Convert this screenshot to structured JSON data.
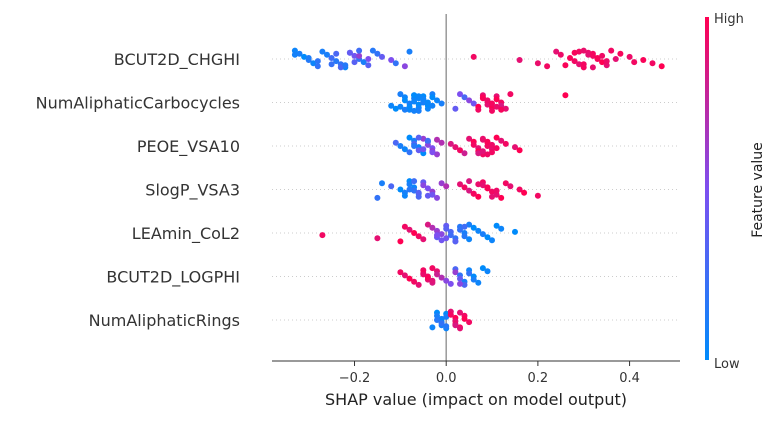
{
  "chart_data": {
    "type": "scatter",
    "subtype": "shap-beeswarm",
    "xlabel": "SHAP value (impact on model output)",
    "xlim": [
      -0.38,
      0.51
    ],
    "xticks": [
      -0.2,
      0.0,
      0.2,
      0.4
    ],
    "xtick_labels": [
      "−0.2",
      "0.0",
      "0.2",
      "0.4"
    ],
    "zero_line": 0.0,
    "features": [
      "BCUT2D_CHGHI",
      "NumAliphaticCarbocycles",
      "PEOE_VSA10",
      "SlogP_VSA3",
      "LEAmin_CoL2",
      "BCUT2D_LOGPHI",
      "NumAliphaticRings"
    ],
    "series": [
      {
        "feature": "BCUT2D_CHGHI",
        "x": [
          -0.33,
          -0.32,
          -0.31,
          -0.3,
          -0.29,
          -0.28,
          -0.27,
          -0.26,
          -0.25,
          -0.24,
          -0.23,
          -0.22,
          -0.21,
          -0.2,
          -0.19,
          -0.18,
          -0.17,
          -0.16,
          -0.15,
          -0.14,
          -0.12,
          -0.11,
          -0.09,
          -0.08,
          -0.33,
          -0.3,
          -0.28,
          -0.25,
          -0.23,
          -0.21,
          -0.19,
          -0.17,
          -0.2,
          -0.22,
          -0.19,
          -0.24,
          0.06,
          0.16,
          0.2,
          0.22,
          0.24,
          0.25,
          0.27,
          0.28,
          0.29,
          0.3,
          0.31,
          0.32,
          0.33,
          0.34,
          0.35,
          0.36,
          0.38,
          0.4,
          0.43,
          0.45,
          0.47,
          0.29,
          0.31,
          0.33,
          0.35,
          0.3,
          0.32,
          0.28,
          0.34,
          0.37,
          0.41,
          0.26,
          0.3,
          0.32
        ],
        "v": [
          0.05,
          0.1,
          0.0,
          0.15,
          0.05,
          0.2,
          0.1,
          0.1,
          0.25,
          0.15,
          0.2,
          0.05,
          0.3,
          0.45,
          0.2,
          0.1,
          0.35,
          0.15,
          0.2,
          0.4,
          0.5,
          0.2,
          0.55,
          0.1,
          0.08,
          0.12,
          0.18,
          0.22,
          0.3,
          0.4,
          0.6,
          0.5,
          0.35,
          0.15,
          0.25,
          0.3,
          0.95,
          0.9,
          0.92,
          0.95,
          0.9,
          0.93,
          0.98,
          0.95,
          0.9,
          0.96,
          0.92,
          0.94,
          0.95,
          1.0,
          0.9,
          0.95,
          0.97,
          0.93,
          0.98,
          0.95,
          1.0,
          0.95,
          0.9,
          0.98,
          0.93,
          0.96,
          0.91,
          0.97,
          0.94,
          0.9,
          0.95,
          0.98,
          0.92,
          0.96
        ]
      },
      {
        "feature": "NumAliphaticCarbocycles",
        "x": [
          -0.12,
          -0.11,
          -0.1,
          -0.09,
          -0.09,
          -0.08,
          -0.08,
          -0.08,
          -0.07,
          -0.07,
          -0.07,
          -0.06,
          -0.06,
          -0.06,
          -0.05,
          -0.05,
          -0.05,
          -0.04,
          -0.04,
          -0.03,
          -0.03,
          -0.02,
          -0.01,
          -0.1,
          -0.09,
          -0.07,
          -0.06,
          -0.05,
          -0.04,
          -0.08,
          -0.07,
          -0.06,
          -0.05,
          -0.04,
          -0.03,
          0.02,
          0.03,
          0.04,
          0.05,
          0.06,
          0.07,
          0.07,
          0.08,
          0.08,
          0.09,
          0.09,
          0.1,
          0.1,
          0.11,
          0.11,
          0.12,
          0.12,
          0.13,
          0.14,
          0.08,
          0.09,
          0.1,
          0.11,
          0.12,
          0.26
        ],
        "v": [
          0.05,
          0.0,
          0.1,
          0.05,
          0.0,
          0.1,
          0.0,
          0.05,
          0.0,
          0.1,
          0.05,
          0.0,
          0.05,
          0.1,
          0.0,
          0.05,
          0.1,
          0.0,
          0.05,
          0.1,
          0.0,
          0.05,
          0.1,
          0.05,
          0.1,
          0.0,
          0.05,
          0.1,
          0.0,
          0.02,
          0.08,
          0.04,
          0.06,
          0.03,
          0.07,
          0.4,
          0.5,
          0.3,
          0.55,
          0.45,
          1.0,
          0.95,
          0.9,
          1.0,
          0.95,
          0.9,
          1.0,
          0.95,
          0.9,
          1.0,
          0.95,
          0.85,
          0.9,
          0.95,
          0.98,
          0.93,
          0.96,
          0.92,
          0.97,
          1.0
        ]
      },
      {
        "feature": "PEOE_VSA10",
        "x": [
          -0.11,
          -0.1,
          -0.09,
          -0.08,
          -0.08,
          -0.07,
          -0.07,
          -0.06,
          -0.06,
          -0.05,
          -0.05,
          -0.04,
          -0.04,
          -0.03,
          -0.03,
          -0.02,
          -0.02,
          -0.01,
          -0.07,
          -0.05,
          -0.03,
          -0.06,
          -0.04,
          0.01,
          0.02,
          0.03,
          0.04,
          0.05,
          0.06,
          0.06,
          0.07,
          0.07,
          0.08,
          0.08,
          0.09,
          0.09,
          0.1,
          0.1,
          0.11,
          0.12,
          0.13,
          0.15,
          0.16,
          0.07,
          0.08,
          0.09,
          0.1,
          0.11,
          0.08,
          0.09
        ],
        "v": [
          0.3,
          0.1,
          0.05,
          0.2,
          0.0,
          0.1,
          0.3,
          0.05,
          0.4,
          0.0,
          0.6,
          0.1,
          0.55,
          0.5,
          0.65,
          0.6,
          0.7,
          0.7,
          0.15,
          0.45,
          0.5,
          0.35,
          0.25,
          0.85,
          0.9,
          0.95,
          0.8,
          0.9,
          1.0,
          0.95,
          0.9,
          1.0,
          0.95,
          0.9,
          1.0,
          0.95,
          0.9,
          0.95,
          1.0,
          0.9,
          0.95,
          0.9,
          1.0,
          0.85,
          0.92,
          0.98,
          0.93,
          0.96,
          0.88,
          0.94
        ]
      },
      {
        "feature": "SlogP_VSA3",
        "x": [
          -0.15,
          -0.14,
          -0.12,
          -0.1,
          -0.09,
          -0.09,
          -0.08,
          -0.08,
          -0.07,
          -0.07,
          -0.06,
          -0.06,
          -0.05,
          -0.05,
          -0.04,
          -0.03,
          -0.03,
          -0.02,
          -0.01,
          0.0,
          -0.08,
          -0.06,
          -0.04,
          -0.07,
          0.03,
          0.04,
          0.05,
          0.06,
          0.07,
          0.08,
          0.08,
          0.09,
          0.1,
          0.11,
          0.12,
          0.13,
          0.14,
          0.16,
          0.17,
          0.2,
          0.05,
          0.07,
          0.09,
          0.11,
          0.06,
          0.1
        ],
        "v": [
          0.2,
          0.1,
          0.3,
          0.0,
          0.1,
          0.05,
          0.0,
          0.1,
          0.05,
          0.2,
          0.1,
          0.3,
          0.4,
          0.55,
          0.5,
          0.6,
          0.45,
          0.55,
          0.6,
          0.7,
          0.15,
          0.35,
          0.4,
          0.25,
          0.9,
          0.95,
          0.85,
          0.9,
          1.0,
          0.95,
          0.9,
          1.0,
          0.95,
          0.9,
          1.0,
          0.95,
          0.9,
          0.95,
          1.0,
          0.95,
          0.85,
          0.92,
          0.98,
          0.93,
          0.96,
          0.9
        ]
      },
      {
        "feature": "LEAmin_CoL2",
        "x": [
          -0.27,
          -0.15,
          -0.1,
          -0.09,
          -0.08,
          -0.07,
          -0.06,
          -0.05,
          -0.04,
          -0.03,
          -0.02,
          -0.01,
          -0.02,
          -0.01,
          0.0,
          0.0,
          0.01,
          0.01,
          0.02,
          0.02,
          0.03,
          0.03,
          0.04,
          0.04,
          0.05,
          0.05,
          0.06,
          0.07,
          0.08,
          0.09,
          0.1,
          0.11,
          0.12,
          0.15,
          -0.02,
          0.0,
          0.02,
          0.04
        ],
        "v": [
          0.95,
          0.9,
          1.0,
          0.95,
          0.9,
          1.0,
          0.95,
          0.9,
          0.85,
          0.7,
          0.6,
          0.55,
          0.4,
          0.45,
          0.4,
          0.35,
          0.3,
          0.25,
          0.2,
          0.3,
          0.15,
          0.2,
          0.1,
          0.15,
          0.05,
          0.1,
          0.0,
          0.05,
          0.1,
          0.0,
          0.05,
          0.0,
          0.05,
          0.0,
          0.5,
          0.45,
          0.35,
          0.25
        ]
      },
      {
        "feature": "BCUT2D_LOGPHI",
        "x": [
          -0.1,
          -0.09,
          -0.08,
          -0.07,
          -0.06,
          -0.05,
          -0.05,
          -0.04,
          -0.04,
          -0.03,
          -0.03,
          -0.02,
          -0.02,
          -0.01,
          0.0,
          0.01,
          0.02,
          0.02,
          0.03,
          0.03,
          0.04,
          0.04,
          0.05,
          0.05,
          0.06,
          0.06,
          0.07,
          0.08,
          0.09,
          -0.05,
          -0.04,
          -0.03,
          0.03
        ],
        "v": [
          0.95,
          0.9,
          1.0,
          0.95,
          0.9,
          0.95,
          1.0,
          0.95,
          0.9,
          0.85,
          0.95,
          0.9,
          0.8,
          0.7,
          0.55,
          0.5,
          0.3,
          0.6,
          0.2,
          0.4,
          0.1,
          0.3,
          0.05,
          0.2,
          0.0,
          0.1,
          0.05,
          0.0,
          0.05,
          0.92,
          0.98,
          0.88,
          0.55
        ]
      },
      {
        "feature": "NumAliphaticRings",
        "x": [
          -0.03,
          -0.02,
          -0.02,
          -0.01,
          -0.01,
          -0.01,
          0.0,
          0.0,
          0.0,
          -0.02,
          -0.01,
          0.0,
          0.01,
          0.01,
          0.02,
          0.02,
          0.02,
          0.03,
          0.03,
          0.04,
          0.04,
          0.05,
          0.02,
          0.03
        ],
        "v": [
          0.05,
          0.0,
          0.1,
          0.05,
          0.0,
          0.1,
          0.05,
          0.0,
          0.1,
          0.15,
          0.2,
          0.15,
          0.9,
          0.95,
          1.0,
          0.9,
          0.95,
          1.0,
          0.9,
          0.95,
          1.0,
          0.95,
          0.85,
          0.9
        ]
      }
    ],
    "colorbar": {
      "label": "Feature value",
      "high_label": "High",
      "low_label": "Low",
      "low_color": "#008bfb",
      "high_color": "#ff0052"
    },
    "grid": false,
    "legend": "colorbar-right"
  }
}
